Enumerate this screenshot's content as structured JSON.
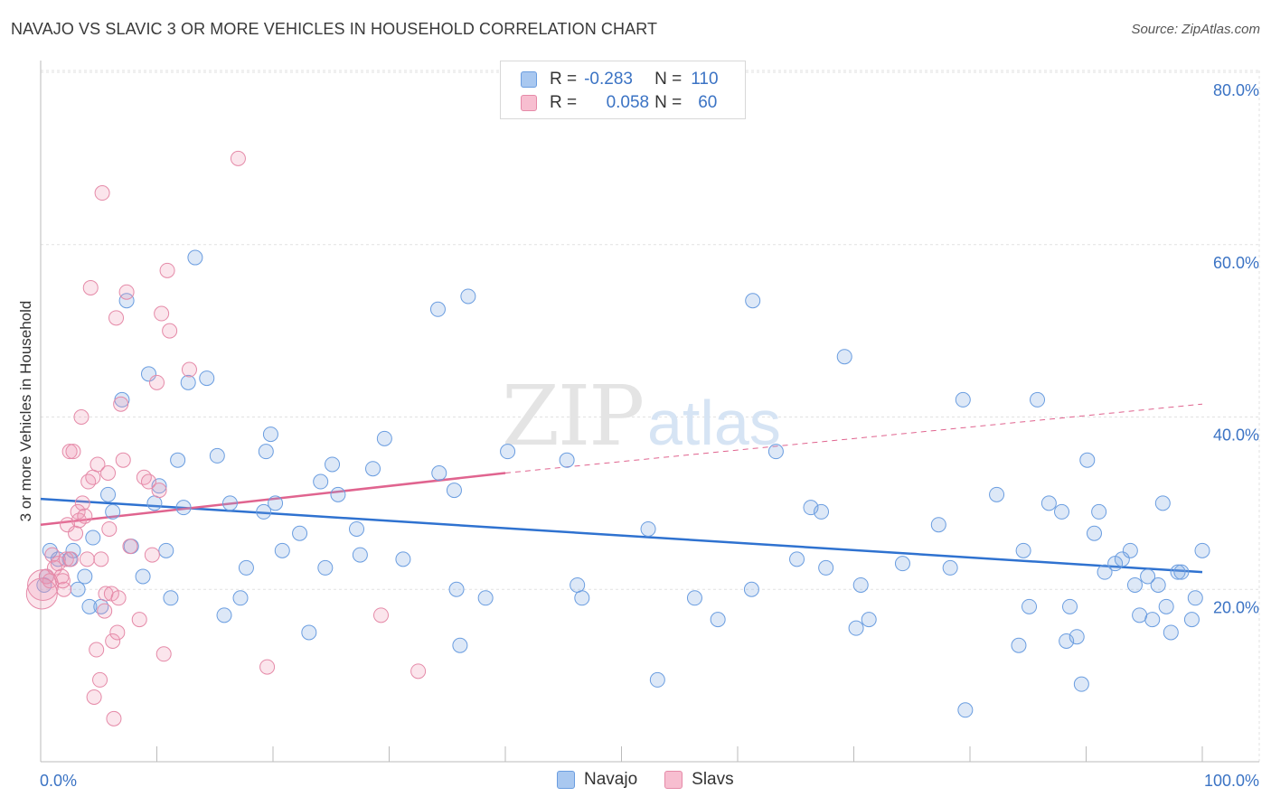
{
  "title": "NAVAJO VS SLAVIC 3 OR MORE VEHICLES IN HOUSEHOLD CORRELATION CHART",
  "source": "Source: ZipAtlas.com",
  "watermark": {
    "zip": "ZIP",
    "atlas": "atlas"
  },
  "legend": {
    "rows": [
      {
        "r_label": "R =",
        "r_value": "-0.283",
        "n_label": "N =",
        "n_value": "110",
        "color": "#a9c8f0",
        "border": "#6a9de0"
      },
      {
        "r_label": "R =",
        "r_value": "0.058",
        "n_label": "N =",
        "n_value": "60",
        "color": "#f7bed0",
        "border": "#e58aa8"
      }
    ]
  },
  "bottom_legend": [
    {
      "label": "Navajo",
      "color": "#a9c8f0",
      "border": "#6a9de0"
    },
    {
      "label": "Slavs",
      "color": "#f7bed0",
      "border": "#e58aa8"
    }
  ],
  "colors": {
    "navajo": "#6a9de0",
    "navajo_fill": "rgba(120,165,225,0.25)",
    "navajo_line": "#2f72d0",
    "slavs": "#e58aa8",
    "slavs_fill": "rgba(240,150,180,0.25)",
    "slavs_line": "#e0648f"
  },
  "chart_data": {
    "type": "scatter",
    "xlabel": "",
    "ylabel": "3 or more Vehicles in Household",
    "xlim": [
      0,
      100
    ],
    "ylim": [
      0,
      80
    ],
    "x_tick_labels": [
      "0.0%",
      "100.0%"
    ],
    "y_tick_labels": [
      "20.0%",
      "40.0%",
      "60.0%",
      "80.0%"
    ],
    "y_ticks": [
      20,
      40,
      60,
      80
    ],
    "grid": true,
    "series": [
      {
        "name": "Navajo",
        "points": [
          [
            0.5,
            21.5
          ],
          [
            0.8,
            24.5
          ],
          [
            1.5,
            23.5
          ],
          [
            2.5,
            23.5
          ],
          [
            2.8,
            24.5
          ],
          [
            3.2,
            20.0
          ],
          [
            3.8,
            21.5
          ],
          [
            4.2,
            18.0
          ],
          [
            4.5,
            26.0
          ],
          [
            5.2,
            18.0
          ],
          [
            5.8,
            31.0
          ],
          [
            6.2,
            29.0
          ],
          [
            7.0,
            42.0
          ],
          [
            7.4,
            53.5
          ],
          [
            7.8,
            25.0
          ],
          [
            8.8,
            21.5
          ],
          [
            9.3,
            45.0
          ],
          [
            9.8,
            30.0
          ],
          [
            10.2,
            32.0
          ],
          [
            10.8,
            24.5
          ],
          [
            11.2,
            19.0
          ],
          [
            11.8,
            35.0
          ],
          [
            12.3,
            29.5
          ],
          [
            12.7,
            44.0
          ],
          [
            13.3,
            58.5
          ],
          [
            14.3,
            44.5
          ],
          [
            15.2,
            35.5
          ],
          [
            15.8,
            17.0
          ],
          [
            16.3,
            30.0
          ],
          [
            17.2,
            19.0
          ],
          [
            17.7,
            22.5
          ],
          [
            19.2,
            29.0
          ],
          [
            19.4,
            36.0
          ],
          [
            19.8,
            38.0
          ],
          [
            20.2,
            30.0
          ],
          [
            20.8,
            24.5
          ],
          [
            22.3,
            26.5
          ],
          [
            23.1,
            15.0
          ],
          [
            24.1,
            32.5
          ],
          [
            24.5,
            22.5
          ],
          [
            25.1,
            34.5
          ],
          [
            25.6,
            31.0
          ],
          [
            27.2,
            27.0
          ],
          [
            27.5,
            24.0
          ],
          [
            28.6,
            34.0
          ],
          [
            29.6,
            37.5
          ],
          [
            31.2,
            23.5
          ],
          [
            34.2,
            52.5
          ],
          [
            34.3,
            33.5
          ],
          [
            35.6,
            31.5
          ],
          [
            35.8,
            20.0
          ],
          [
            36.1,
            13.5
          ],
          [
            36.8,
            54.0
          ],
          [
            38.3,
            19.0
          ],
          [
            40.2,
            36.0
          ],
          [
            45.3,
            35.0
          ],
          [
            46.2,
            20.5
          ],
          [
            46.6,
            19.0
          ],
          [
            52.3,
            27.0
          ],
          [
            53.1,
            9.5
          ],
          [
            56.3,
            19.0
          ],
          [
            58.3,
            16.5
          ],
          [
            61.2,
            20.0
          ],
          [
            61.3,
            53.5
          ],
          [
            63.3,
            36.0
          ],
          [
            65.1,
            23.5
          ],
          [
            66.3,
            29.5
          ],
          [
            67.2,
            29.0
          ],
          [
            67.6,
            22.5
          ],
          [
            69.2,
            47.0
          ],
          [
            70.2,
            15.5
          ],
          [
            70.6,
            20.5
          ],
          [
            71.3,
            16.5
          ],
          [
            74.2,
            23.0
          ],
          [
            77.3,
            27.5
          ],
          [
            78.3,
            22.5
          ],
          [
            79.4,
            42.0
          ],
          [
            79.6,
            6.0
          ],
          [
            82.3,
            31.0
          ],
          [
            84.2,
            13.5
          ],
          [
            84.6,
            24.5
          ],
          [
            85.1,
            18.0
          ],
          [
            85.8,
            42.0
          ],
          [
            86.8,
            30.0
          ],
          [
            87.9,
            29.0
          ],
          [
            88.3,
            14.0
          ],
          [
            88.6,
            18.0
          ],
          [
            89.2,
            14.5
          ],
          [
            89.6,
            9.0
          ],
          [
            90.1,
            35.0
          ],
          [
            90.7,
            26.5
          ],
          [
            91.1,
            29.0
          ],
          [
            91.6,
            22.0
          ],
          [
            92.5,
            23.0
          ],
          [
            93.1,
            23.5
          ],
          [
            93.8,
            24.5
          ],
          [
            94.2,
            20.5
          ],
          [
            94.6,
            17.0
          ],
          [
            95.3,
            21.5
          ],
          [
            95.7,
            16.5
          ],
          [
            96.2,
            20.5
          ],
          [
            96.6,
            30.0
          ],
          [
            96.9,
            18.0
          ],
          [
            97.3,
            15.0
          ],
          [
            97.9,
            22.0
          ],
          [
            98.2,
            22.0
          ],
          [
            99.1,
            16.5
          ],
          [
            99.4,
            19.0
          ],
          [
            100.0,
            24.5
          ],
          [
            0.3,
            20.5
          ]
        ]
      },
      {
        "name": "Slavs",
        "points": [
          [
            0.2,
            20.5
          ],
          [
            0.5,
            21.5
          ],
          [
            0.8,
            21.0
          ],
          [
            1.0,
            24.0
          ],
          [
            1.2,
            22.5
          ],
          [
            1.5,
            23.0
          ],
          [
            1.8,
            21.5
          ],
          [
            2.0,
            20.0
          ],
          [
            2.2,
            23.5
          ],
          [
            2.3,
            27.5
          ],
          [
            2.5,
            36.0
          ],
          [
            2.6,
            23.5
          ],
          [
            2.8,
            36.0
          ],
          [
            3.0,
            26.5
          ],
          [
            3.2,
            29.0
          ],
          [
            3.3,
            28.0
          ],
          [
            3.5,
            40.0
          ],
          [
            3.6,
            30.0
          ],
          [
            3.8,
            28.5
          ],
          [
            4.0,
            23.5
          ],
          [
            4.1,
            32.5
          ],
          [
            4.3,
            55.0
          ],
          [
            4.5,
            33.0
          ],
          [
            4.6,
            7.5
          ],
          [
            4.8,
            13.0
          ],
          [
            4.9,
            34.5
          ],
          [
            5.1,
            9.5
          ],
          [
            5.2,
            23.5
          ],
          [
            5.3,
            66.0
          ],
          [
            5.5,
            17.5
          ],
          [
            5.6,
            19.5
          ],
          [
            5.8,
            33.5
          ],
          [
            5.9,
            27.0
          ],
          [
            6.1,
            19.5
          ],
          [
            6.2,
            14.0
          ],
          [
            6.3,
            5.0
          ],
          [
            6.5,
            51.5
          ],
          [
            6.6,
            15.0
          ],
          [
            6.7,
            19.0
          ],
          [
            6.9,
            41.5
          ],
          [
            7.1,
            35.0
          ],
          [
            7.4,
            54.5
          ],
          [
            7.7,
            25.0
          ],
          [
            8.5,
            16.5
          ],
          [
            8.9,
            33.0
          ],
          [
            9.3,
            32.5
          ],
          [
            9.6,
            24.0
          ],
          [
            10.0,
            44.0
          ],
          [
            10.2,
            31.5
          ],
          [
            10.4,
            52.0
          ],
          [
            10.6,
            12.5
          ],
          [
            10.9,
            57.0
          ],
          [
            11.1,
            50.0
          ],
          [
            12.8,
            45.5
          ],
          [
            17.0,
            70.0
          ],
          [
            19.5,
            11.0
          ],
          [
            29.3,
            17.0
          ],
          [
            32.5,
            10.5
          ],
          [
            0.1,
            19.5
          ],
          [
            1.9,
            21.0
          ]
        ]
      }
    ],
    "trendlines": [
      {
        "series": "Navajo",
        "x": [
          0,
          100
        ],
        "y": [
          30.5,
          22.0
        ],
        "style": "solid"
      },
      {
        "series": "Slavs",
        "x": [
          0,
          40
        ],
        "y": [
          27.5,
          33.5
        ],
        "style": "solid"
      },
      {
        "series": "Slavs",
        "x": [
          40,
          100
        ],
        "y": [
          33.5,
          41.5
        ],
        "style": "dashed"
      }
    ]
  }
}
